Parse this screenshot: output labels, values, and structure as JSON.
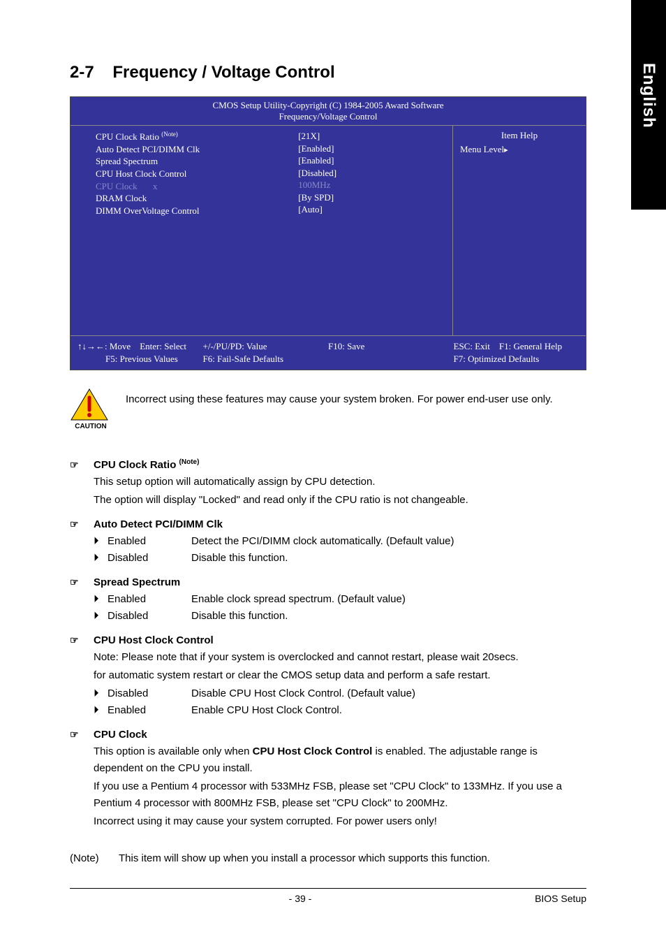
{
  "sideTab": "English",
  "section": {
    "number": "2-7",
    "title": "Frequency / Voltage Control"
  },
  "bios": {
    "header1": "CMOS Setup Utility-Copyright (C) 1984-2005 Award Software",
    "header2": "Frequency/Voltage Control",
    "rows": [
      {
        "label": "CPU Clock Ratio",
        "noteSup": "(Note)",
        "value": "[21X]",
        "dim": false
      },
      {
        "label": "Auto Detect PCI/DIMM Clk",
        "value": "[Enabled]",
        "dim": false
      },
      {
        "label": "Spread Spectrum",
        "value": "[Enabled]",
        "dim": false
      },
      {
        "label": "CPU Host Clock Control",
        "value": "[Disabled]",
        "dim": false
      },
      {
        "label": "CPU Clock",
        "prefix": "x",
        "value": "100MHz",
        "dim": true
      },
      {
        "label": "DRAM Clock",
        "value": "[By SPD]",
        "dim": false
      },
      {
        "label": "DIMM OverVoltage Control",
        "value": "[Auto]",
        "dim": false
      }
    ],
    "rightTitle": "Item Help",
    "rightMenu": "Menu Level",
    "footer": {
      "c1a": "↑↓→←: Move",
      "c1b": "Enter: Select",
      "c2a": "+/-/PU/PD: Value",
      "c3a": "F10: Save",
      "c4a": "ESC: Exit",
      "c4b": "F1: General Help",
      "r2a": "F5: Previous Values",
      "r2b": "F6: Fail-Safe Defaults",
      "r2d": "F7: Optimized Defaults"
    }
  },
  "caution": {
    "label": "CAUTION",
    "text": "Incorrect using these features may cause your system broken. For power end-user use only."
  },
  "options": [
    {
      "title": "CPU Clock Ratio",
      "noteSup": "(Note)",
      "paras": [
        "This setup option will automatically assign by CPU detection.",
        "The option will display \"Locked\" and read only if the CPU ratio is not changeable."
      ]
    },
    {
      "title": "Auto Detect PCI/DIMM Clk",
      "values": [
        {
          "name": "Enabled",
          "desc": "Detect the PCI/DIMM clock automatically. (Default value)"
        },
        {
          "name": "Disabled",
          "desc": "Disable this function."
        }
      ]
    },
    {
      "title": "Spread Spectrum",
      "values": [
        {
          "name": "Enabled",
          "desc": "Enable clock spread spectrum. (Default value)"
        },
        {
          "name": "Disabled",
          "desc": "Disable this function."
        }
      ]
    },
    {
      "title": "CPU Host Clock Control",
      "paras": [
        "Note: Please note that if your system is overclocked and cannot restart, please wait 20secs.",
        "for automatic system restart or clear the CMOS setup data and perform a safe restart."
      ],
      "values": [
        {
          "name": "Disabled",
          "desc": "Disable CPU Host Clock Control. (Default value)"
        },
        {
          "name": "Enabled",
          "desc": "Enable CPU Host  Clock Control."
        }
      ]
    },
    {
      "title": "CPU Clock",
      "richpara": true,
      "p1a": "This option is available only when ",
      "p1b": "CPU Host Clock Control",
      "p1c": " is enabled. The adjustable range is dependent on the CPU you install.",
      "paras2": [
        "If you use a Pentium 4 processor with 533MHz FSB, please set \"CPU Clock\" to 133MHz. If you use a Pentium 4 processor with 800MHz FSB, please set \"CPU Clock\" to 200MHz.",
        "Incorrect using it may cause your system corrupted. For power users only!"
      ]
    }
  ],
  "noteLine": {
    "label": "(Note)",
    "text": "This item will show up when you install a processor which supports this function."
  },
  "footer": {
    "page": "- 39 -",
    "right": "BIOS Setup"
  },
  "colors": {
    "biosBg": "#333399",
    "biosDim": "#8888cc",
    "cautionYellow": "#ffcc00",
    "cautionRed": "#cc0000"
  }
}
